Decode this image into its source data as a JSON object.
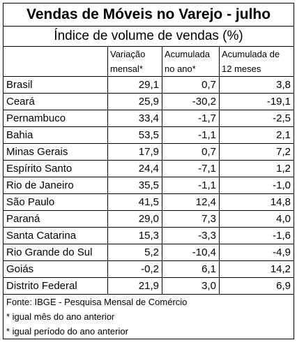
{
  "table": {
    "title": "Vendas de Móveis no Varejo - julho",
    "subtitle": "Índice de volume de vendas (%)",
    "headers": {
      "col1_line1": "Variação",
      "col1_line2": "mensal*",
      "col2_line1": "Acumulada",
      "col2_line2": "no ano*",
      "col3_line1": "Acumulada de",
      "col3_line2": "12 meses"
    },
    "rows": [
      {
        "region": "Brasil",
        "mensal": "29,1",
        "ano": "0,7",
        "doze_meses": "3,8"
      },
      {
        "region": "Ceará",
        "mensal": "25,9",
        "ano": "-30,2",
        "doze_meses": "-19,1"
      },
      {
        "region": "Pernambuco",
        "mensal": "33,4",
        "ano": "-1,7",
        "doze_meses": "-2,5"
      },
      {
        "region": "Bahia",
        "mensal": "53,5",
        "ano": "-1,1",
        "doze_meses": "2,1"
      },
      {
        "region": "Minas Gerais",
        "mensal": "17,9",
        "ano": "0,7",
        "doze_meses": "7,2"
      },
      {
        "region": "Espírito Santo",
        "mensal": "24,4",
        "ano": "-7,1",
        "doze_meses": "1,2"
      },
      {
        "region": "Rio de Janeiro",
        "mensal": "35,5",
        "ano": "-1,1",
        "doze_meses": "-1,0"
      },
      {
        "region": "São Paulo",
        "mensal": "41,5",
        "ano": "12,4",
        "doze_meses": "14,8"
      },
      {
        "region": "Paraná",
        "mensal": "29,0",
        "ano": "7,3",
        "doze_meses": "4,0"
      },
      {
        "region": "Santa Catarina",
        "mensal": "15,3",
        "ano": "-3,3",
        "doze_meses": "-1,6"
      },
      {
        "region": "Rio Grande do Sul",
        "mensal": "5,2",
        "ano": "-10,4",
        "doze_meses": "-4,9"
      },
      {
        "region": "Goiás",
        "mensal": "-0,2",
        "ano": "6,1",
        "doze_meses": "14,2"
      },
      {
        "region": "Distrito Federal",
        "mensal": "21,9",
        "ano": "3,0",
        "doze_meses": "6,9"
      }
    ],
    "notes": {
      "source": "Fonte: IBGE - Pesquisa Mensal de Comércio",
      "note1": "* igual mês do ano anterior",
      "note2": "* igual período do ano anterior"
    }
  }
}
